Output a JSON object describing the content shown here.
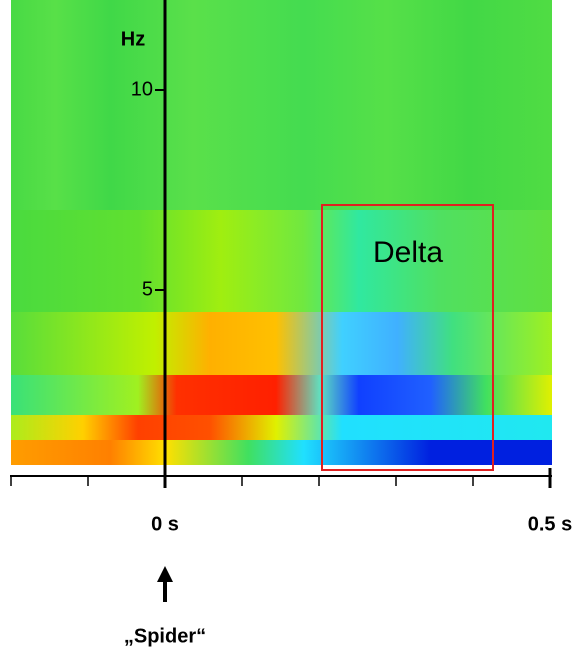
{
  "chart_data": {
    "type": "spectrogram",
    "ylabel": "Hz",
    "xlim": [
      -0.2,
      0.5
    ],
    "ylim": [
      0.625,
      12.25
    ],
    "yticks": [
      5,
      10
    ],
    "xticks": [
      {
        "value": 0,
        "label": "0 s"
      },
      {
        "value": 0.5,
        "label": "0.5 s"
      }
    ],
    "xminorticks": [
      -0.2,
      -0.1,
      0.1,
      0.2,
      0.3,
      0.4
    ],
    "annotations": {
      "box": "Delta",
      "event": "„Spider“"
    }
  }
}
